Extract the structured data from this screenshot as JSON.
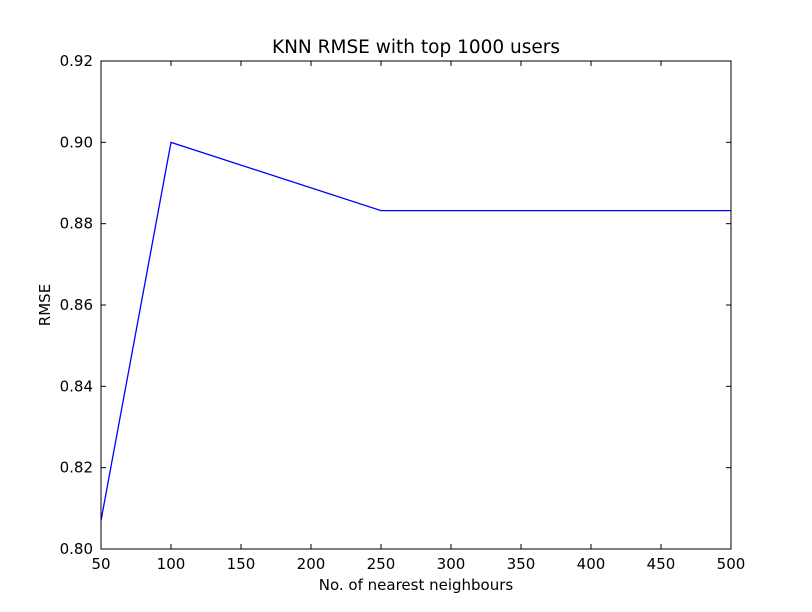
{
  "chart_data": {
    "type": "line",
    "title": "KNN RMSE with top 1000 users",
    "xlabel": "No. of nearest neighbours",
    "ylabel": "RMSE",
    "xlim": [
      50,
      500
    ],
    "ylim": [
      0.8,
      0.92
    ],
    "x_ticks": [
      50,
      100,
      150,
      200,
      250,
      300,
      350,
      400,
      450,
      500
    ],
    "x_tick_labels": [
      "50",
      "100",
      "150",
      "200",
      "250",
      "300",
      "350",
      "400",
      "450",
      "500"
    ],
    "y_ticks": [
      0.8,
      0.82,
      0.84,
      0.86,
      0.88,
      0.9,
      0.92
    ],
    "y_tick_labels": [
      "0.80",
      "0.82",
      "0.84",
      "0.86",
      "0.88",
      "0.90",
      "0.92"
    ],
    "grid": false,
    "series": [
      {
        "color": "#0000ff",
        "x": [
          50,
          100,
          250,
          500
        ],
        "y": [
          0.807,
          0.9,
          0.8832,
          0.8832
        ]
      }
    ]
  }
}
